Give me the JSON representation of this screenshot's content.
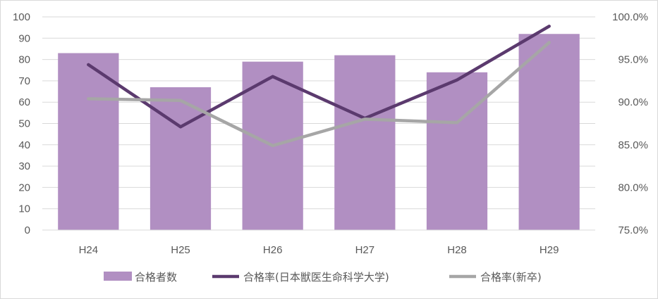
{
  "chart_data": {
    "type": "bar",
    "categories": [
      "H24",
      "H25",
      "H26",
      "H27",
      "H28",
      "H29"
    ],
    "series": [
      {
        "name": "合格者数",
        "type": "bar",
        "axis": "left",
        "color": "#b18fc2",
        "values": [
          83,
          67,
          79,
          82,
          74,
          92
        ]
      },
      {
        "name": "合格率(日本獣医生命科学大学)",
        "type": "line",
        "axis": "right",
        "color": "#5b3a6e",
        "values": [
          94.4,
          87.1,
          93.0,
          88.1,
          92.6,
          98.9
        ]
      },
      {
        "name": "合格率(新卒)",
        "type": "line",
        "axis": "right",
        "color": "#a6a6a6",
        "values": [
          90.4,
          90.2,
          84.9,
          88.0,
          87.6,
          97.0
        ]
      }
    ],
    "y_left": {
      "ylim": [
        0,
        100
      ],
      "ticks": [
        "0",
        "10",
        "20",
        "30",
        "40",
        "50",
        "60",
        "70",
        "80",
        "90",
        "100"
      ]
    },
    "y_right": {
      "ylim": [
        75,
        100
      ],
      "ticks": [
        "75.0%",
        "80.0%",
        "85.0%",
        "90.0%",
        "95.0%",
        "100.0%"
      ]
    },
    "grid": true,
    "legend_position": "bottom",
    "title": "",
    "xlabel": "",
    "ylabel": ""
  }
}
